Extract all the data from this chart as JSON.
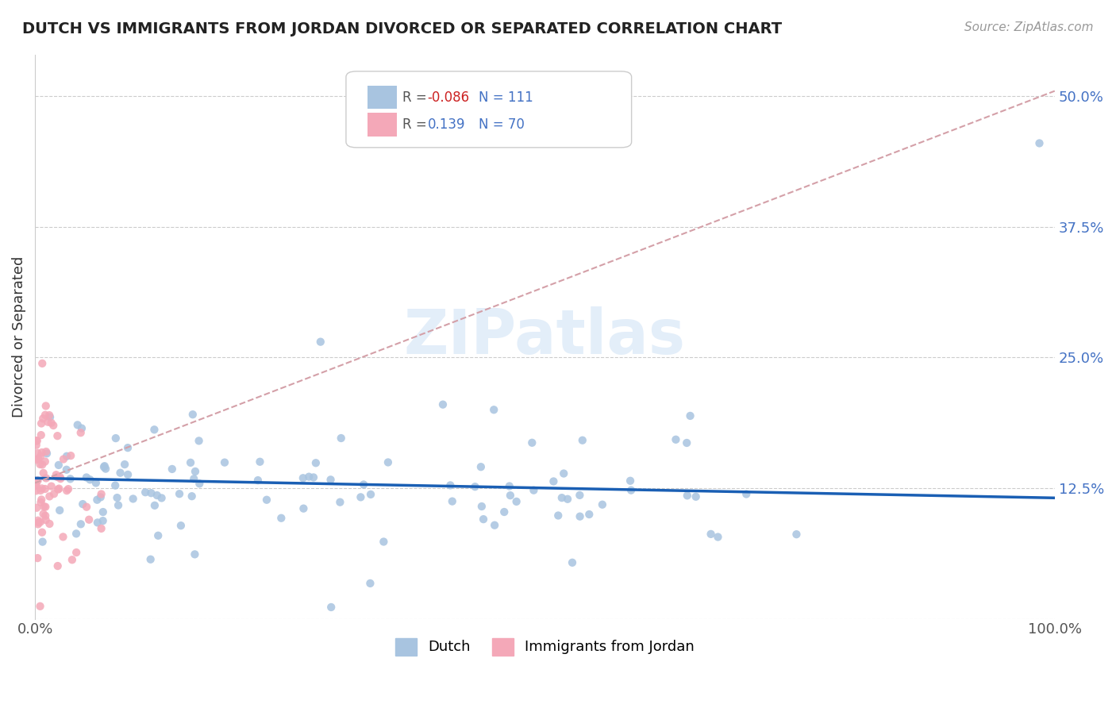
{
  "title": "DUTCH VS IMMIGRANTS FROM JORDAN DIVORCED OR SEPARATED CORRELATION CHART",
  "source": "Source: ZipAtlas.com",
  "ylabel": "Divorced or Separated",
  "r_dutch": -0.086,
  "n_dutch": 111,
  "r_jordan": 0.139,
  "n_jordan": 70,
  "xlim": [
    0.0,
    1.0
  ],
  "ylim": [
    0.0,
    0.54
  ],
  "ytick_vals": [
    0.0,
    0.125,
    0.25,
    0.375,
    0.5
  ],
  "ytick_labels": [
    "",
    "12.5%",
    "25.0%",
    "37.5%",
    "50.0%"
  ],
  "xtick_vals": [
    0.0,
    1.0
  ],
  "xtick_labels": [
    "0.0%",
    "100.0%"
  ],
  "color_dutch": "#a8c4e0",
  "color_jordan": "#f4a8b8",
  "trendline_dutch": "#1a5fb4",
  "trendline_jordan": "#d4a0a8",
  "background_color": "#ffffff",
  "watermark": "ZIPatlas"
}
